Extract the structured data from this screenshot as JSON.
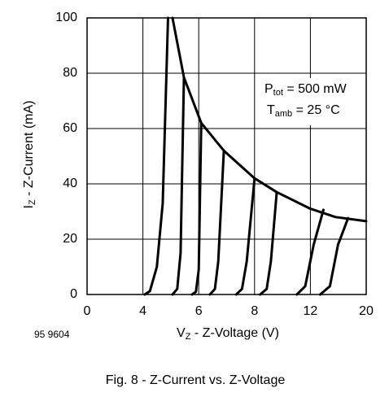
{
  "chart_data": {
    "type": "line",
    "title": "Fig. 8 - Z-Current vs. Z-Voltage",
    "figure_id": "95 9604",
    "x_label": {
      "symbol": "V",
      "sub": "Z",
      "text": " - Z-Voltage (V)"
    },
    "y_label": {
      "symbol": "I",
      "sub": "Z",
      "text": " - Z-Current (mA)"
    },
    "annotations": [
      {
        "symbol": "P",
        "sub": "tot",
        "text": " = 500 mW"
      },
      {
        "symbol": "T",
        "sub": "amb",
        "text": " = 25 °C"
      }
    ],
    "xlim": [
      0,
      20
    ],
    "ylim": [
      0,
      100
    ],
    "xticks": [
      0,
      4,
      6,
      8,
      12,
      20
    ],
    "yticks": [
      0,
      20,
      40,
      60,
      80,
      100
    ],
    "xscale": "tick-spaced",
    "grid": true,
    "series": [
      {
        "color": "#000000",
        "x": [
          4.06,
          4.25,
          4.5,
          4.71,
          4.9
        ],
        "values": [
          0,
          1.2,
          10,
          33,
          100
        ]
      },
      {
        "color": "#000000",
        "x": [
          5.06,
          5.23,
          5.35,
          5.47
        ],
        "values": [
          0,
          2,
          15,
          78.5
        ]
      },
      {
        "color": "#000000",
        "x": [
          5.76,
          5.9,
          6.0,
          6.09
        ],
        "values": [
          0,
          1,
          9,
          62
        ]
      },
      {
        "color": "#000000",
        "x": [
          6.4,
          6.58,
          6.7,
          6.9
        ],
        "values": [
          0,
          2,
          12,
          52
        ]
      },
      {
        "color": "#000000",
        "x": [
          7.34,
          7.55,
          7.72,
          8.0
        ],
        "values": [
          0,
          2,
          12,
          42
        ]
      },
      {
        "color": "#000000",
        "x": [
          8.4,
          8.87,
          9.17,
          9.59
        ],
        "values": [
          0,
          2,
          12,
          37
        ]
      },
      {
        "color": "#000000",
        "x": [
          11.03,
          11.63,
          12.47,
          13.87
        ],
        "values": [
          0,
          3,
          18,
          30.6
        ]
      },
      {
        "color": "#000000",
        "x": [
          13.4,
          14.8,
          15.96,
          17.4
        ],
        "values": [
          0,
          3,
          18,
          27.6
        ]
      },
      {
        "color": "#000000",
        "x": [
          5.06,
          5.47,
          6.09,
          6.9,
          8.0,
          9.59,
          12.0,
          15.6,
          20.0
        ],
        "values": [
          100,
          78.5,
          62,
          52,
          42,
          37,
          31,
          28,
          26.5
        ]
      }
    ]
  }
}
